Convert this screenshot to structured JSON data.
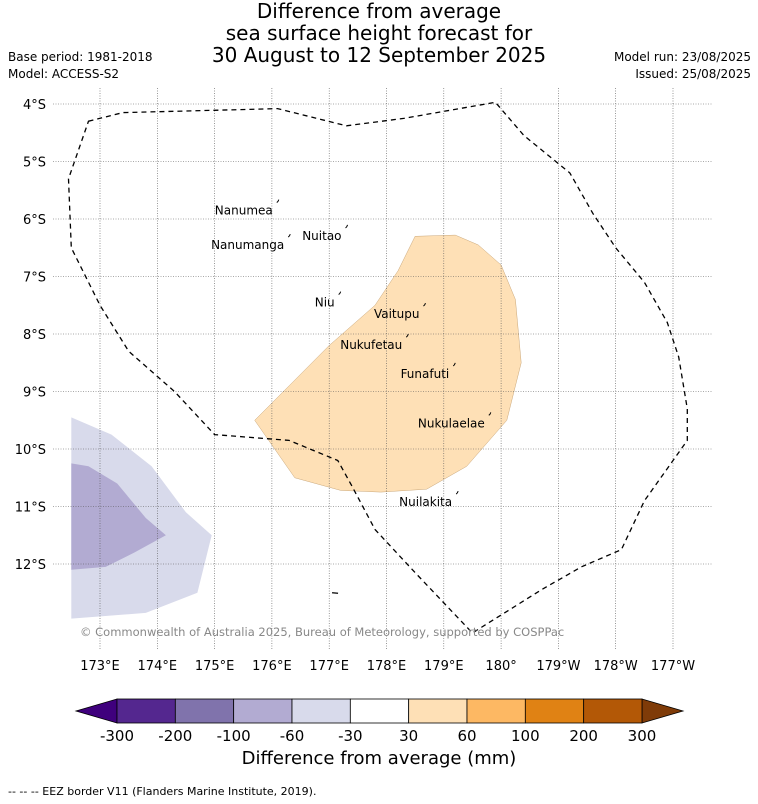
{
  "title_lines": [
    "Difference from average",
    "sea surface height forecast for",
    "30 August to 12 September 2025"
  ],
  "meta_left": [
    "Base period: 1981-2018",
    "Model: ACCESS-S2"
  ],
  "meta_right": [
    "Model run: 23/08/2025",
    "Issued: 25/08/2025"
  ],
  "lat_labels": [
    "4°S",
    "5°S",
    "6°S",
    "7°S",
    "8°S",
    "9°S",
    "10°S",
    "11°S",
    "12°S"
  ],
  "lon_labels": [
    "173°E",
    "174°E",
    "175°E",
    "176°E",
    "177°E",
    "178°E",
    "179°E",
    "180°",
    "179°W",
    "178°W",
    "177°W"
  ],
  "places": [
    {
      "name": "Nanumea",
      "lon": 176.12,
      "lat": -5.68
    },
    {
      "name": "Nuitao",
      "lon": 177.32,
      "lat": -6.12
    },
    {
      "name": "Nanumanga",
      "lon": 176.32,
      "lat": -6.28
    },
    {
      "name": "Niu",
      "lon": 177.2,
      "lat": -7.28
    },
    {
      "name": "Vaitupu",
      "lon": 178.68,
      "lat": -7.48
    },
    {
      "name": "Nukufetau",
      "lon": 178.38,
      "lat": -8.02
    },
    {
      "name": "Funafuti",
      "lon": 179.2,
      "lat": -8.52
    },
    {
      "name": "Nukulaelae",
      "lon": 179.82,
      "lat": -9.38
    },
    {
      "name": "Nuilakita",
      "lon": 179.25,
      "lat": -10.75
    }
  ],
  "copyright": "© Commonwealth of Australia 2025, Bureau of Meteorology, supported by COSPPac",
  "colorbar": {
    "title": "Difference from average (mm)",
    "ticks": [
      "-300",
      "-200",
      "-100",
      "-60",
      "-30",
      "30",
      "60",
      "100",
      "200",
      "300"
    ],
    "colors": [
      "#54278f",
      "#8073ac",
      "#b2abd2",
      "#d8daeb",
      "#ffffff",
      "#fee0b6",
      "#fdb863",
      "#e08214",
      "#b35806"
    ],
    "under_color": "#3f007d",
    "over_color": "#7f3b08"
  },
  "eez_note": "--  --  -- EEZ border V11 (Flanders Marine Institute, 2019).",
  "contours": [
    {
      "name": "positive-anomaly-30-60mm",
      "color": "#fee0b6",
      "points": [
        [
          178.5,
          -6.3
        ],
        [
          179.2,
          -6.28
        ],
        [
          179.6,
          -6.45
        ],
        [
          180.0,
          -6.8
        ],
        [
          180.25,
          -7.4
        ],
        [
          180.35,
          -8.5
        ],
        [
          180.1,
          -9.5
        ],
        [
          179.4,
          -10.3
        ],
        [
          178.7,
          -10.7
        ],
        [
          177.9,
          -10.75
        ],
        [
          177.2,
          -10.72
        ],
        [
          176.4,
          -10.5
        ],
        [
          175.7,
          -9.5
        ],
        [
          176.3,
          -8.9
        ],
        [
          177.0,
          -8.2
        ],
        [
          177.8,
          -7.5
        ],
        [
          178.2,
          -6.9
        ]
      ]
    },
    {
      "name": "negative-anomaly-30-60mm",
      "color": "#d8daeb",
      "points": [
        [
          172.5,
          -9.45
        ],
        [
          173.2,
          -9.75
        ],
        [
          173.9,
          -10.3
        ],
        [
          174.5,
          -11.1
        ],
        [
          174.95,
          -11.5
        ],
        [
          174.7,
          -12.5
        ],
        [
          173.8,
          -12.85
        ],
        [
          172.5,
          -12.95
        ]
      ]
    },
    {
      "name": "negative-anomaly-60-100mm",
      "color": "#b2abd2",
      "points": [
        [
          172.5,
          -10.25
        ],
        [
          172.8,
          -10.3
        ],
        [
          173.3,
          -10.6
        ],
        [
          173.8,
          -11.2
        ],
        [
          174.15,
          -11.5
        ],
        [
          173.6,
          -11.8
        ],
        [
          173.1,
          -12.05
        ],
        [
          172.5,
          -12.1
        ]
      ]
    }
  ],
  "eez_border": [
    [
      172.8,
      -4.3
    ],
    [
      173.4,
      -4.15
    ],
    [
      175.4,
      -4.1
    ],
    [
      176.1,
      -4.08
    ],
    [
      177.3,
      -4.38
    ],
    [
      178.3,
      -4.25
    ],
    [
      179.9,
      -3.97
    ],
    [
      180.4,
      -4.55
    ],
    [
      181.2,
      -5.2
    ],
    [
      181.6,
      -5.9
    ],
    [
      182.0,
      -6.5
    ],
    [
      182.5,
      -7.1
    ],
    [
      182.9,
      -7.8
    ],
    [
      183.1,
      -8.4
    ],
    [
      183.25,
      -9.3
    ],
    [
      183.25,
      -9.85
    ],
    [
      182.5,
      -10.9
    ],
    [
      182.1,
      -11.75
    ],
    [
      181.4,
      -12.05
    ],
    [
      180.7,
      -12.45
    ],
    [
      179.5,
      -13.2
    ],
    [
      178.5,
      -12.15
    ],
    [
      177.8,
      -11.4
    ],
    [
      177.4,
      -10.65
    ],
    [
      177.15,
      -10.2
    ],
    [
      176.3,
      -9.85
    ],
    [
      175.0,
      -9.75
    ],
    [
      174.3,
      -9.0
    ],
    [
      173.5,
      -8.3
    ],
    [
      173.0,
      -7.5
    ],
    [
      172.5,
      -6.5
    ],
    [
      172.45,
      -5.3
    ]
  ]
}
